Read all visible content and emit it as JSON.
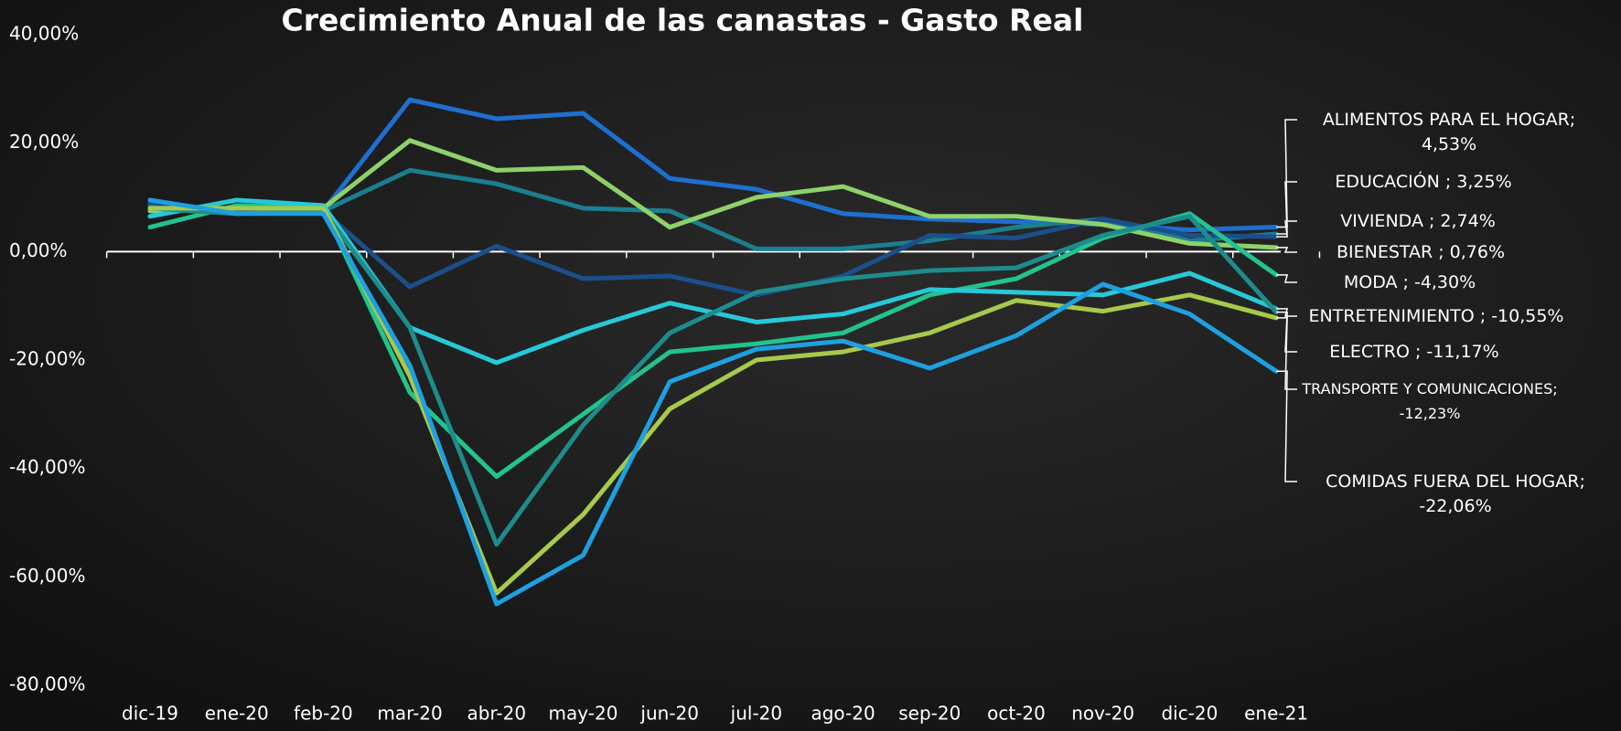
{
  "chart_data": {
    "type": "line",
    "title": "Crecimiento Anual de las canastas - Gasto Real",
    "categories": [
      "dic-19",
      "ene-20",
      "feb-20",
      "mar-20",
      "abr-20",
      "may-20",
      "jun-20",
      "jul-20",
      "ago-20",
      "sep-20",
      "oct-20",
      "nov-20",
      "dic-20",
      "ene-21"
    ],
    "ylim": [
      -80,
      40
    ],
    "yticks": [
      {
        "value": -80,
        "label": "-80,00%"
      },
      {
        "value": -60,
        "label": "-60,00%"
      },
      {
        "value": -40,
        "label": "-40,00%"
      },
      {
        "value": -20,
        "label": "-20,00%"
      },
      {
        "value": 0,
        "label": "0,00%"
      },
      {
        "value": 20,
        "label": "20,00%"
      },
      {
        "value": 40,
        "label": "40,00%"
      }
    ],
    "grid": false,
    "series": [
      {
        "name": "ALIMENTOS PARA EL HOGAR;",
        "color": "#1e6fd0",
        "values": [
          8,
          7,
          7.5,
          28,
          24.5,
          25.5,
          13.5,
          11.5,
          7,
          6,
          5.5,
          5,
          4,
          4.53
        ],
        "value_labels": [
          null,
          null,
          null,
          null,
          null,
          null,
          null,
          null,
          null,
          null,
          null,
          null,
          null,
          "4,53%"
        ]
      },
      {
        "name": "EDUCACIÓN  ;",
        "color": "#1a7f8f",
        "values": [
          8.5,
          7.5,
          7.5,
          15,
          12.5,
          8,
          7.5,
          0.5,
          0.5,
          2,
          4.5,
          6,
          2,
          3.25
        ],
        "value_labels": [
          null,
          null,
          null,
          null,
          null,
          null,
          null,
          null,
          null,
          null,
          null,
          null,
          null,
          "3,25%"
        ]
      },
      {
        "name": "VIVIENDA ;",
        "color": "#1b4f8a",
        "values": [
          9,
          7.5,
          7.5,
          -6.5,
          1,
          -5,
          -4.5,
          -8,
          -4.5,
          3,
          2.5,
          6,
          3,
          2.74
        ],
        "value_labels": [
          null,
          null,
          null,
          null,
          null,
          null,
          null,
          null,
          null,
          null,
          null,
          null,
          null,
          "2,74%"
        ]
      },
      {
        "name": "BIENESTAR ;",
        "color": "#8fd16a",
        "values": [
          7.5,
          8,
          8,
          20.5,
          15,
          15.5,
          4.5,
          10,
          12,
          6.5,
          6.5,
          5,
          1.5,
          0.76
        ],
        "value_labels": [
          null,
          null,
          null,
          null,
          null,
          null,
          null,
          null,
          null,
          null,
          null,
          null,
          null,
          "0,76%"
        ]
      },
      {
        "name": "MODA ;",
        "color": "#22c38e",
        "values": [
          4.5,
          8.5,
          8,
          -26,
          -41.5,
          -30,
          -18.5,
          -17,
          -15,
          -8,
          -5,
          2.5,
          7,
          -4.3
        ],
        "value_labels": [
          null,
          null,
          null,
          null,
          null,
          null,
          null,
          null,
          null,
          null,
          null,
          null,
          null,
          "-4,30%"
        ]
      },
      {
        "name": "ENTRETENIMIENTO ;",
        "color": "#27c9d8",
        "values": [
          6.5,
          9.5,
          8.5,
          -14,
          -20.5,
          -14.5,
          -9.5,
          -13,
          -11.5,
          -7,
          -7.5,
          -8,
          -4,
          -10.55
        ],
        "value_labels": [
          null,
          null,
          null,
          null,
          null,
          null,
          null,
          null,
          null,
          null,
          null,
          null,
          null,
          "-10,55%"
        ]
      },
      {
        "name": "ELECTRO ;",
        "color": "#1e8c8c",
        "values": [
          8,
          7,
          7.5,
          -14,
          -54,
          -32,
          -15,
          -7.5,
          -5,
          -3.5,
          -3,
          3,
          6.5,
          -11.17
        ],
        "value_labels": [
          null,
          null,
          null,
          null,
          null,
          null,
          null,
          null,
          null,
          null,
          null,
          null,
          null,
          "-11,17%"
        ]
      },
      {
        "name": "TRANSPORTE Y COMUNICACIONES;",
        "color": "#a8c94a",
        "values": [
          8,
          8,
          8,
          -23,
          -63,
          -48.5,
          -29,
          -20,
          -18.5,
          -15,
          -9,
          -11,
          -8,
          -12.23
        ],
        "value_labels": [
          null,
          null,
          null,
          null,
          null,
          null,
          null,
          null,
          null,
          null,
          null,
          null,
          null,
          "-12,23%"
        ]
      },
      {
        "name": "COMIDAS FUERA DEL HOGAR;",
        "color": "#1ea0e0",
        "values": [
          9.5,
          7,
          7,
          -21,
          -65,
          -56,
          -24,
          -18,
          -16.5,
          -21.5,
          -15.5,
          -6,
          -11.5,
          -22.06
        ],
        "value_labels": [
          null,
          null,
          null,
          null,
          null,
          null,
          null,
          null,
          null,
          null,
          null,
          null,
          null,
          "-22,06%"
        ]
      }
    ]
  }
}
